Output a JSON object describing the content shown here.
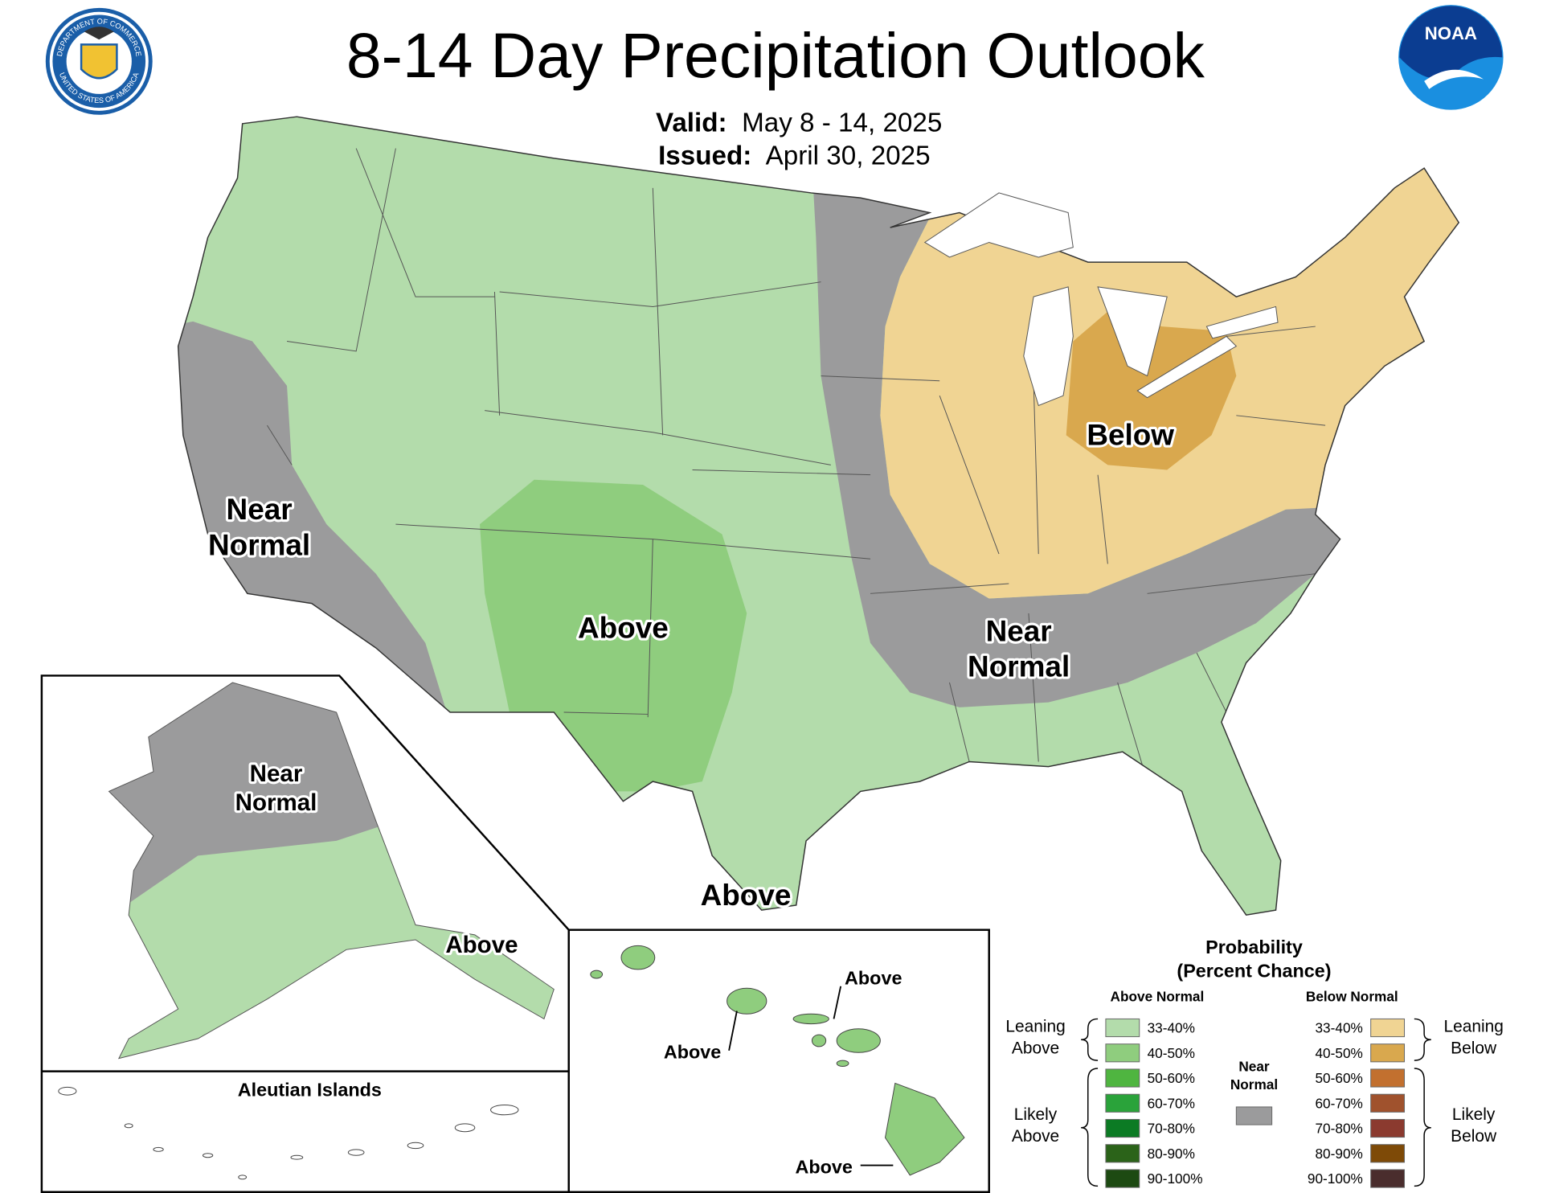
{
  "header": {
    "title": "8-14 Day Precipitation Outlook",
    "valid_label": "Valid:",
    "valid": "May 8 - 14, 2025",
    "issued_label": "Issued:",
    "issued": "April 30, 2025"
  },
  "logos": {
    "seal_top": "DEPARTMENT OF COMMERCE",
    "seal_bottom": "UNITED STATES OF AMERICA",
    "noaa": "NOAA"
  },
  "map_labels": [
    {
      "lines": [
        "Near",
        "Normal"
      ]
    },
    {
      "lines": [
        "Above"
      ]
    },
    {
      "lines": [
        "Below"
      ]
    },
    {
      "lines": [
        "Near",
        "Normal"
      ]
    },
    {
      "lines": [
        "Above"
      ]
    }
  ],
  "alaska_labels": [
    {
      "lines": [
        "Near",
        "Normal"
      ]
    },
    {
      "lines": [
        "Above"
      ]
    }
  ],
  "aleutian_title": "Aleutian Islands",
  "hawaii_labels": [
    "Above",
    "Above",
    "Above"
  ],
  "legend": {
    "title": [
      "Probability",
      "(Percent Chance)"
    ],
    "above": {
      "heading": "Above Normal",
      "groups": [
        [
          "Leaning",
          "Above"
        ],
        [
          "Likely",
          "Above"
        ]
      ],
      "items": [
        {
          "label": "33-40%",
          "color": "#b3dcab"
        },
        {
          "label": "40-50%",
          "color": "#8fcd7e"
        },
        {
          "label": "50-60%",
          "color": "#4fb540"
        },
        {
          "label": "60-70%",
          "color": "#2aa33a"
        },
        {
          "label": "70-80%",
          "color": "#0c7b24"
        },
        {
          "label": "80-90%",
          "color": "#2b6319"
        },
        {
          "label": "90-100%",
          "color": "#1d4a12"
        }
      ]
    },
    "below": {
      "heading": "Below Normal",
      "groups": [
        [
          "Leaning",
          "Below"
        ],
        [
          "Likely",
          "Below"
        ]
      ],
      "items": [
        {
          "label": "33-40%",
          "color": "#f0d493"
        },
        {
          "label": "40-50%",
          "color": "#d9a84e"
        },
        {
          "label": "50-60%",
          "color": "#c2702f"
        },
        {
          "label": "60-70%",
          "color": "#a0522d"
        },
        {
          "label": "70-80%",
          "color": "#8b3a2f"
        },
        {
          "label": "80-90%",
          "color": "#7e4a07"
        },
        {
          "label": "90-100%",
          "color": "#4a2d2d"
        }
      ]
    },
    "near": {
      "lines": [
        "Near",
        "Normal"
      ],
      "color": "#9b9b9c"
    }
  }
}
